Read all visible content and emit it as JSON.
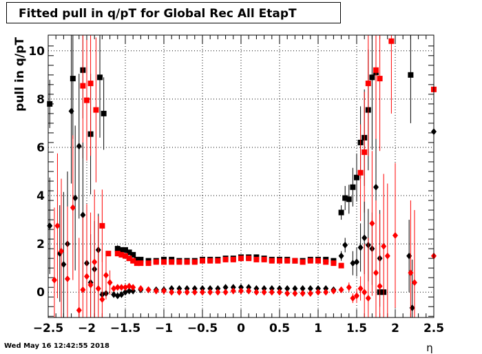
{
  "chart_data": {
    "type": "scatter",
    "title": "Fitted pull in q/pT for Global Rec All EtapT",
    "xlabel": "η",
    "ylabel": "pull in q/pT",
    "xlim": [
      -2.5,
      2.5
    ],
    "ylim": [
      -1.05,
      10.65
    ],
    "x_ticks": [
      -2.5,
      -2,
      -1.5,
      -1,
      -0.5,
      0,
      0.5,
      1,
      1.5,
      2,
      2.5
    ],
    "x_tick_labels": [
      "−2.5",
      "−2",
      "−1.5",
      "−1",
      "−0.5",
      "0",
      "0.5",
      "1",
      "1.5",
      "2",
      "2.5"
    ],
    "y_ticks": [
      0,
      2,
      4,
      6,
      8,
      10
    ],
    "y_tick_labels": [
      "0",
      "2",
      "4",
      "6",
      "8",
      "10"
    ],
    "grid": true,
    "colors": {
      "black": "#000000",
      "red": "#ff0000"
    },
    "series": [
      {
        "marker": "square",
        "color": "#000000",
        "x": [
          -2.48,
          -2.18,
          -2.05,
          -1.95,
          -1.83,
          -1.78,
          -1.6,
          -1.55,
          -1.5,
          -1.45,
          -1.4,
          -1.35,
          -1.3,
          -1.2,
          -1.1,
          -1.0,
          -0.9,
          -0.8,
          -0.7,
          -0.6,
          -0.5,
          -0.4,
          -0.3,
          -0.2,
          -0.1,
          0.0,
          0.1,
          0.2,
          0.3,
          0.4,
          0.5,
          0.6,
          0.7,
          0.8,
          0.9,
          1.0,
          1.1,
          1.2,
          1.3,
          1.35,
          1.4,
          1.45,
          1.5,
          1.55,
          1.6,
          1.65,
          1.7,
          1.75,
          1.8,
          1.85,
          2.2
        ],
        "y": [
          7.8,
          8.85,
          9.2,
          6.55,
          8.9,
          7.4,
          1.8,
          1.75,
          1.75,
          1.65,
          1.55,
          1.35,
          1.35,
          1.3,
          1.3,
          1.35,
          1.35,
          1.3,
          1.3,
          1.3,
          1.35,
          1.35,
          1.35,
          1.4,
          1.4,
          1.45,
          1.45,
          1.45,
          1.4,
          1.35,
          1.35,
          1.35,
          1.3,
          1.3,
          1.35,
          1.35,
          1.35,
          1.3,
          3.3,
          3.9,
          3.85,
          4.35,
          4.75,
          6.2,
          6.4,
          7.55,
          8.9,
          9.1,
          0.0,
          0.0,
          9.0
        ],
        "yerr": [
          1.0,
          2.5,
          2.0,
          2.5,
          2.5,
          1.5,
          0.15,
          0.1,
          0.1,
          0.1,
          0.1,
          0.1,
          0.05,
          0.05,
          0.05,
          0.05,
          0.05,
          0.05,
          0.05,
          0.05,
          0.05,
          0.05,
          0.05,
          0.05,
          0.05,
          0.05,
          0.05,
          0.05,
          0.05,
          0.05,
          0.05,
          0.05,
          0.05,
          0.05,
          0.05,
          0.05,
          0.05,
          0.05,
          0.3,
          0.5,
          0.6,
          0.8,
          1.0,
          1.5,
          2.0,
          2.5,
          3.0,
          3.0,
          0.0,
          0.0,
          2.0
        ]
      },
      {
        "marker": "square",
        "color": "#ff0000",
        "x": [
          -2.05,
          -2.0,
          -1.95,
          -1.88,
          -1.8,
          -1.72,
          -1.6,
          -1.55,
          -1.5,
          -1.45,
          -1.4,
          -1.35,
          -1.3,
          -1.2,
          -1.1,
          -1.0,
          -0.9,
          -0.8,
          -0.7,
          -0.6,
          -0.5,
          -0.4,
          -0.3,
          -0.2,
          -0.1,
          0.0,
          0.1,
          0.2,
          0.3,
          0.4,
          0.5,
          0.6,
          0.7,
          0.8,
          0.9,
          1.0,
          1.1,
          1.2,
          1.3,
          1.55,
          1.6,
          1.65,
          1.75,
          1.8,
          1.95,
          2.5
        ],
        "y": [
          8.55,
          7.95,
          8.65,
          7.55,
          2.75,
          1.6,
          1.6,
          1.55,
          1.5,
          1.4,
          1.3,
          1.2,
          1.2,
          1.2,
          1.25,
          1.25,
          1.25,
          1.25,
          1.25,
          1.25,
          1.3,
          1.3,
          1.3,
          1.35,
          1.35,
          1.4,
          1.4,
          1.35,
          1.35,
          1.3,
          1.3,
          1.3,
          1.3,
          1.25,
          1.3,
          1.3,
          1.25,
          1.2,
          1.1,
          4.95,
          5.8,
          8.65,
          9.2,
          8.85,
          10.4,
          8.4
        ],
        "yerr": [
          3.0,
          2.5,
          3.0,
          3.0,
          1.5,
          0.1,
          0.1,
          0.1,
          0.1,
          0.1,
          0.1,
          0.05,
          0.05,
          0.05,
          0.05,
          0.05,
          0.05,
          0.05,
          0.05,
          0.05,
          0.05,
          0.05,
          0.05,
          0.05,
          0.05,
          0.05,
          0.05,
          0.05,
          0.05,
          0.05,
          0.05,
          0.05,
          0.05,
          0.05,
          0.05,
          0.05,
          0.05,
          0.05,
          0.1,
          2.0,
          2.5,
          3.0,
          3.0,
          3.0,
          3.0,
          3.0
        ]
      },
      {
        "marker": "diamond",
        "color": "#000000",
        "x": [
          -2.48,
          -2.35,
          -2.3,
          -2.25,
          -2.2,
          -2.15,
          -2.1,
          -2.05,
          -2.0,
          -1.95,
          -1.9,
          -1.85,
          -1.8,
          -1.75,
          -1.65,
          -1.6,
          -1.55,
          -1.5,
          -1.45,
          -1.4,
          -1.3,
          -1.2,
          -1.1,
          -1.0,
          -0.9,
          -0.8,
          -0.7,
          -0.6,
          -0.5,
          -0.4,
          -0.3,
          -0.2,
          -0.1,
          0.0,
          0.1,
          0.2,
          0.3,
          0.4,
          0.5,
          0.6,
          0.7,
          0.8,
          0.9,
          1.0,
          1.1,
          1.2,
          1.3,
          1.35,
          1.45,
          1.5,
          1.55,
          1.6,
          1.65,
          1.7,
          1.75,
          1.8,
          2.18,
          2.22,
          2.5
        ],
        "y": [
          2.75,
          1.6,
          1.15,
          2.0,
          7.5,
          3.9,
          6.05,
          3.2,
          1.2,
          0.4,
          0.95,
          1.75,
          -0.1,
          -0.05,
          -0.1,
          -0.15,
          -0.1,
          0.0,
          0.05,
          0.05,
          0.1,
          0.1,
          0.1,
          0.1,
          0.15,
          0.15,
          0.15,
          0.15,
          0.15,
          0.15,
          0.15,
          0.2,
          0.2,
          0.2,
          0.2,
          0.15,
          0.15,
          0.15,
          0.15,
          0.15,
          0.15,
          0.15,
          0.15,
          0.15,
          0.15,
          0.1,
          1.5,
          1.95,
          1.2,
          1.25,
          1.85,
          2.25,
          1.95,
          1.8,
          4.35,
          1.4,
          1.5,
          -0.65,
          6.65
        ],
        "yerr": [
          2.0,
          2.0,
          3.0,
          3.0,
          3.0,
          3.0,
          3.0,
          3.0,
          2.0,
          2.0,
          2.0,
          1.5,
          0.15,
          0.1,
          0.1,
          0.1,
          0.1,
          0.05,
          0.05,
          0.05,
          0.05,
          0.05,
          0.05,
          0.05,
          0.05,
          0.05,
          0.05,
          0.05,
          0.05,
          0.05,
          0.05,
          0.05,
          0.05,
          0.05,
          0.05,
          0.05,
          0.05,
          0.05,
          0.05,
          0.05,
          0.05,
          0.05,
          0.05,
          0.05,
          0.05,
          0.05,
          0.2,
          0.3,
          0.5,
          0.6,
          1.0,
          1.5,
          1.5,
          1.5,
          2.0,
          2.0,
          1.5,
          2.0,
          3.0
        ]
      },
      {
        "marker": "diamond",
        "color": "#ff0000",
        "x": [
          -2.42,
          -2.38,
          -2.33,
          -2.25,
          -2.18,
          -2.1,
          -2.05,
          -2.0,
          -1.95,
          -1.9,
          -1.85,
          -1.8,
          -1.75,
          -1.7,
          -1.65,
          -1.6,
          -1.55,
          -1.5,
          -1.45,
          -1.4,
          -1.3,
          -1.2,
          -1.1,
          -1.0,
          -0.9,
          -0.8,
          -0.7,
          -0.6,
          -0.5,
          -0.4,
          -0.3,
          -0.2,
          -0.1,
          0.0,
          0.1,
          0.2,
          0.3,
          0.4,
          0.5,
          0.6,
          0.7,
          0.8,
          0.9,
          1.0,
          1.1,
          1.2,
          1.3,
          1.4,
          1.45,
          1.5,
          1.55,
          1.6,
          1.65,
          1.7,
          1.75,
          1.8,
          1.85,
          1.9,
          2.0,
          2.2,
          2.25,
          2.5
        ],
        "y": [
          0.5,
          2.75,
          1.7,
          0.55,
          3.5,
          -0.75,
          0.1,
          0.65,
          0.3,
          1.25,
          0.15,
          -0.3,
          0.7,
          0.4,
          0.15,
          0.2,
          0.2,
          0.2,
          0.25,
          0.2,
          0.15,
          0.1,
          0.05,
          0.05,
          0.0,
          0.0,
          0.0,
          0.0,
          0.0,
          0.0,
          0.0,
          0.0,
          0.05,
          0.05,
          0.05,
          0.0,
          0.0,
          0.0,
          0.0,
          -0.05,
          -0.05,
          -0.05,
          -0.05,
          0.0,
          0.0,
          0.05,
          0.1,
          0.2,
          -0.25,
          -0.15,
          0.15,
          0.0,
          -0.25,
          2.85,
          0.8,
          0.25,
          1.9,
          1.5,
          2.35,
          0.8,
          0.4,
          1.5
        ],
        "yerr": [
          3.0,
          3.0,
          3.0,
          3.0,
          3.0,
          3.0,
          3.0,
          3.0,
          3.0,
          3.0,
          3.0,
          2.0,
          1.0,
          0.5,
          0.1,
          0.1,
          0.1,
          0.1,
          0.1,
          0.05,
          0.05,
          0.05,
          0.05,
          0.05,
          0.05,
          0.05,
          0.05,
          0.05,
          0.05,
          0.05,
          0.05,
          0.05,
          0.05,
          0.05,
          0.05,
          0.05,
          0.05,
          0.05,
          0.05,
          0.05,
          0.05,
          0.05,
          0.05,
          0.05,
          0.05,
          0.05,
          0.1,
          0.2,
          0.2,
          0.3,
          0.5,
          2.0,
          2.5,
          3.0,
          3.0,
          3.0,
          3.0,
          3.0,
          3.0,
          3.0,
          3.0,
          3.0
        ]
      }
    ]
  },
  "timestamp": "Wed May 16 12:42:55 2018"
}
